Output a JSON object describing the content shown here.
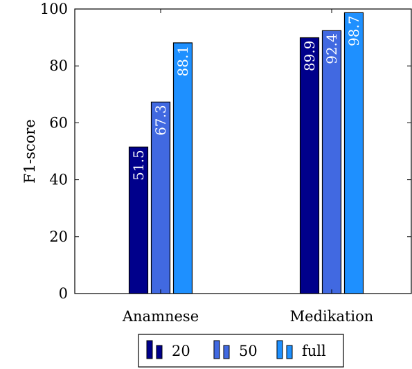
{
  "chart_data": {
    "type": "bar",
    "categories": [
      "Anamnese",
      "Medikation"
    ],
    "series": [
      {
        "name": "20",
        "values": [
          51.5,
          89.9
        ],
        "color": "#00008b"
      },
      {
        "name": "50",
        "values": [
          67.3,
          92.4
        ],
        "color": "#4169e1"
      },
      {
        "name": "full",
        "values": [
          88.1,
          98.7
        ],
        "color": "#1e90ff"
      }
    ],
    "title": "",
    "xlabel": "",
    "ylabel": "F1-score",
    "ylim": [
      0,
      100
    ],
    "yticks": [
      0,
      20,
      40,
      60,
      80,
      100
    ],
    "grid": false,
    "legend": "bottom"
  }
}
